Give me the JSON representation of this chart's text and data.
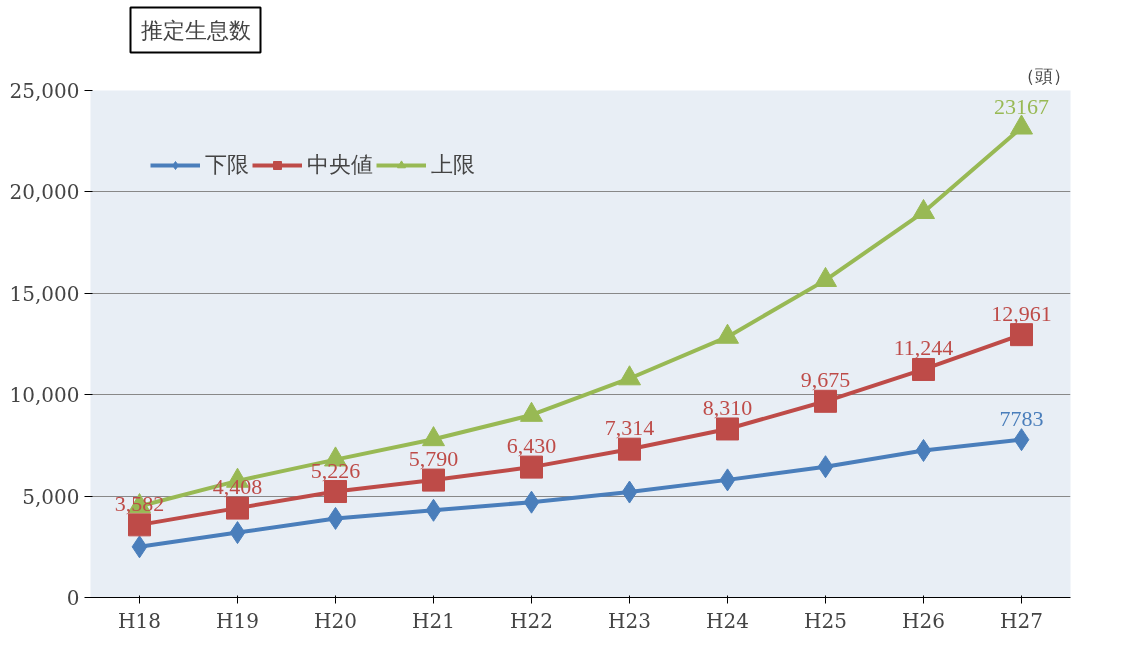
{
  "chart_data": {
    "type": "line",
    "title": "推定生息数",
    "annotations": [
      "（頭）"
    ],
    "categories": [
      "H18",
      "H19",
      "H20",
      "H21",
      "H22",
      "H23",
      "H24",
      "H25",
      "H26",
      "H27"
    ],
    "series": [
      {
        "name": "下限",
        "color": "#4a7ebb",
        "marker": "diamond",
        "values": [
          2500,
          3200,
          3900,
          4300,
          4700,
          5200,
          5800,
          6450,
          7250,
          7783
        ],
        "value_labels": [
          null,
          null,
          null,
          null,
          null,
          null,
          null,
          null,
          null,
          "7783"
        ]
      },
      {
        "name": "中央値",
        "color": "#be4b48",
        "marker": "square",
        "values": [
          3582,
          4408,
          5226,
          5790,
          6430,
          7314,
          8310,
          9675,
          11244,
          12961
        ],
        "value_labels": [
          "3,582",
          "4,408",
          "5,226",
          "5,790",
          "6,430",
          "7,314",
          "8,310",
          "9,675",
          "11,244",
          "12,961"
        ]
      },
      {
        "name": "上限",
        "color": "#98b954",
        "marker": "triangle",
        "values": [
          4500,
          5750,
          6800,
          7800,
          9000,
          10800,
          12850,
          15650,
          19000,
          23167
        ],
        "value_labels": [
          null,
          null,
          null,
          null,
          null,
          null,
          null,
          null,
          null,
          "23167"
        ]
      }
    ],
    "ylim": [
      0,
      25000
    ],
    "yticks": [
      0,
      {
        "value": 5000,
        "label": "5,000"
      },
      {
        "value": 10000,
        "label": "10,000"
      },
      {
        "value": 15000,
        "label": "15,000"
      },
      {
        "value": 20000,
        "label": "20,000"
      },
      {
        "value": 25000,
        "label": "25,000"
      }
    ],
    "grid": "y",
    "legend": "top left",
    "line_style": "solid"
  }
}
